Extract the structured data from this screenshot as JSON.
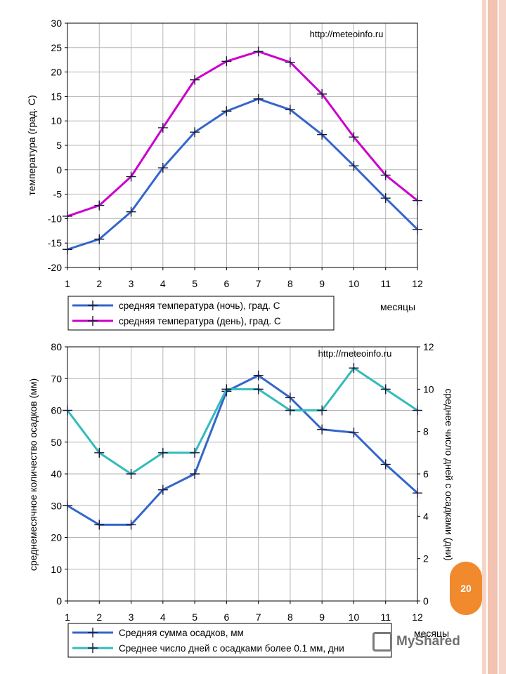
{
  "chart_data": [
    {
      "type": "line",
      "x": [
        1,
        2,
        3,
        4,
        5,
        6,
        7,
        8,
        9,
        10,
        11,
        12
      ],
      "xticks": [
        "1",
        "2",
        "3",
        "4",
        "5",
        "6",
        "7",
        "8",
        "9",
        "10",
        "11",
        "12"
      ],
      "ylim": [
        -20,
        30
      ],
      "yticks": [
        "-20",
        "-15",
        "-10",
        "-5",
        "0",
        "5",
        "10",
        "15",
        "20",
        "25",
        "30"
      ],
      "ylabel": "температура (град. C)",
      "xlabel": "месяцы",
      "annotation": "http://meteoinfo.ru",
      "grid": true,
      "legend_position": "bottom",
      "series": [
        {
          "name": "средняя температура (ночь), град. С",
          "color": "#3366cc",
          "values": [
            -16.3,
            -14.2,
            -8.6,
            0.4,
            7.7,
            12,
            14.5,
            12.3,
            7.2,
            0.8,
            -5.8,
            -12.2
          ]
        },
        {
          "name": "средняя температура (день), град. С",
          "color": "#cc00cc",
          "values": [
            -9.5,
            -7.3,
            -1.4,
            8.6,
            18.4,
            22.2,
            24.2,
            22,
            15.5,
            6.7,
            -1.1,
            -6.3
          ]
        }
      ]
    },
    {
      "type": "line",
      "x": [
        1,
        2,
        3,
        4,
        5,
        6,
        7,
        8,
        9,
        10,
        11,
        12
      ],
      "xticks": [
        "1",
        "2",
        "3",
        "4",
        "5",
        "6",
        "7",
        "8",
        "9",
        "10",
        "11",
        "12"
      ],
      "ylim": [
        0,
        80
      ],
      "yticks": [
        "0",
        "10",
        "20",
        "30",
        "40",
        "50",
        "60",
        "70",
        "80"
      ],
      "y2lim": [
        0,
        12
      ],
      "y2ticks": [
        "0",
        "2",
        "4",
        "6",
        "8",
        "10",
        "12"
      ],
      "ylabel": "среднемесячное количество осадков (мм)",
      "y2label": "среднее число дней с осадками (дни)",
      "xlabel": "месяцы",
      "annotation": "http://meteoinfo.ru",
      "grid": true,
      "legend_position": "bottom",
      "series": [
        {
          "name": "Средняя сумма осадков, мм",
          "color": "#3366cc",
          "axis": "left",
          "values": [
            30,
            24,
            24,
            35,
            40,
            66,
            71,
            64,
            54,
            53,
            43,
            34
          ]
        },
        {
          "name": "Среднее число дней с  осадками более 0.1 мм, дни",
          "color": "#33bbbb",
          "axis": "right",
          "values": [
            9,
            7,
            6,
            7,
            7,
            10,
            10,
            9,
            9,
            11,
            10,
            9
          ]
        }
      ]
    }
  ],
  "page_number": "20",
  "watermark": "MyShared"
}
